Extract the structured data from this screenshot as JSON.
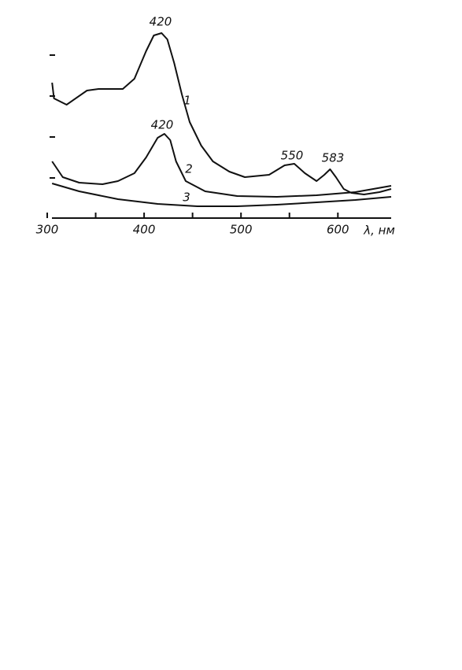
{
  "chart_data": {
    "type": "line",
    "x_label": "λ, нм",
    "xlim": [
      300,
      655
    ],
    "xticks": [
      300,
      350,
      400,
      450,
      500,
      550,
      600
    ],
    "xtick_labels_shown": [
      300,
      400,
      500,
      600
    ],
    "ylim": [
      0,
      250
    ],
    "color": "#111111",
    "series": [
      {
        "name": "1",
        "x": [
          305,
          307,
          320,
          341,
          353,
          378,
          390,
          402,
          410,
          418,
          424,
          431,
          439,
          447,
          459,
          471,
          488,
          504,
          529,
          545,
          555,
          566,
          578,
          586,
          592,
          598,
          606,
          614,
          627,
          643,
          655
        ],
        "values": [
          172,
          152,
          144,
          162,
          164,
          164,
          177,
          212,
          232,
          235,
          227,
          197,
          157,
          122,
          92,
          72,
          59,
          52,
          55,
          67,
          69,
          57,
          47,
          55,
          62,
          52,
          37,
          32,
          30,
          33,
          37
        ]
      },
      {
        "name": "2",
        "x": [
          305,
          316,
          333,
          357,
          373,
          390,
          402,
          414,
          421,
          427,
          433,
          443,
          463,
          496,
          537,
          578,
          618,
          655
        ],
        "values": [
          72,
          52,
          45,
          43,
          47,
          57,
          77,
          102,
          107,
          99,
          72,
          47,
          34,
          28,
          27,
          29,
          33,
          41
        ]
      },
      {
        "name": "3",
        "x": [
          305,
          333,
          373,
          414,
          455,
          496,
          537,
          578,
          618,
          655
        ],
        "values": [
          44,
          34,
          24,
          18,
          15,
          15,
          17,
          20,
          23,
          27
        ]
      }
    ],
    "annotations": [
      "420",
      "420",
      "550",
      "583"
    ]
  }
}
